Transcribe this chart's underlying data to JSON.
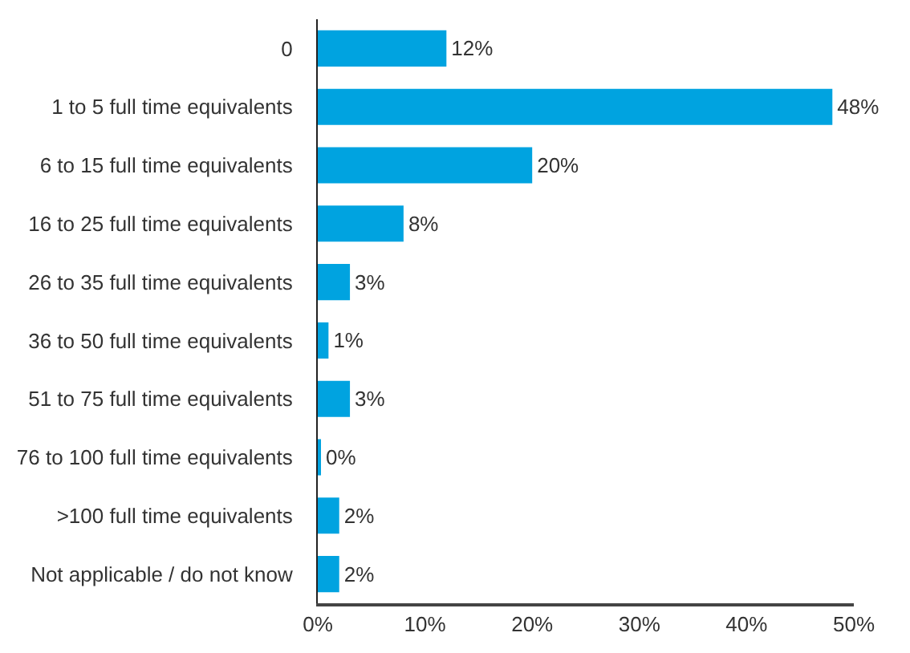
{
  "chart_data": {
    "type": "bar",
    "orientation": "horizontal",
    "categories": [
      "0",
      "1 to 5 full time equivalents",
      "6 to 15 full time equivalents",
      "16 to 25 full time equivalents",
      "26 to 35 full time equivalents",
      "36 to 50 full time equivalents",
      "51 to 75 full time equivalents",
      "76 to 100 full time equivalents",
      ">100 full time equivalents",
      "Not applicable / do not know"
    ],
    "values": [
      12,
      48,
      20,
      8,
      3,
      1,
      3,
      0.3,
      2,
      2
    ],
    "value_labels": [
      "12%",
      "48%",
      "20%",
      "8%",
      "3%",
      "1%",
      "3%",
      "0%",
      "2%",
      "2%"
    ],
    "color": "#00a3e0",
    "xlim": [
      0,
      50
    ],
    "xticks": [
      {
        "value": 0,
        "label": "0%"
      },
      {
        "value": 10,
        "label": "10%"
      },
      {
        "value": 20,
        "label": "20%"
      },
      {
        "value": 30,
        "label": "30%"
      },
      {
        "value": 40,
        "label": "40%"
      },
      {
        "value": 50,
        "label": "50%"
      }
    ]
  }
}
